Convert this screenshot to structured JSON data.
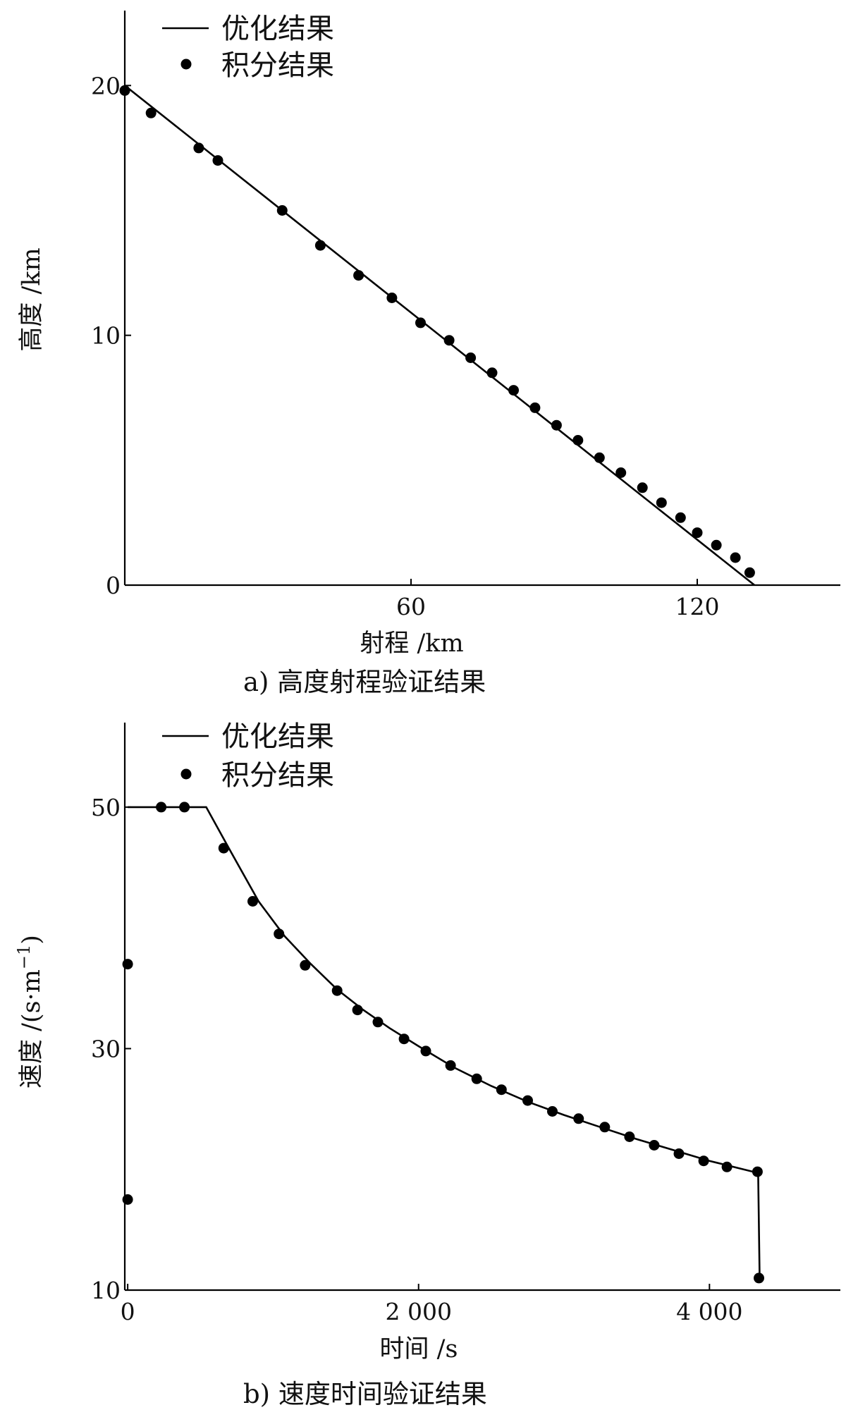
{
  "chart_data": [
    {
      "type": "line",
      "title": "",
      "caption": "a)  高度射程验证结果",
      "xlabel": "射程 /km",
      "ylabel": "高度 /km",
      "xlim": [
        0,
        150
      ],
      "ylim": [
        0,
        23
      ],
      "xticks": [
        60,
        120
      ],
      "xtick_labels": [
        "60",
        "120"
      ],
      "yticks": [
        0,
        10,
        20
      ],
      "ytick_labels": [
        "0",
        "10",
        "20"
      ],
      "grid": false,
      "legend_position": "top-left",
      "series": [
        {
          "name": "优化结果",
          "style": "line",
          "x": [
            0,
            132
          ],
          "y": [
            20,
            0
          ]
        },
        {
          "name": "积分结果",
          "style": "markers",
          "x": [
            0,
            5.5,
            15.5,
            19.5,
            33,
            41,
            49,
            56,
            62,
            68,
            72.5,
            77,
            81.5,
            86,
            90.5,
            95,
            99.5,
            104,
            108.5,
            112.5,
            116.5,
            120,
            124,
            128,
            131
          ],
          "y": [
            19.8,
            18.9,
            17.5,
            17.0,
            15.0,
            13.6,
            12.4,
            11.5,
            10.5,
            9.8,
            9.1,
            8.5,
            7.8,
            7.1,
            6.4,
            5.8,
            5.1,
            4.5,
            3.9,
            3.3,
            2.7,
            2.1,
            1.6,
            1.1,
            0.5
          ]
        }
      ]
    },
    {
      "type": "line",
      "title": "",
      "caption": "b)  速度时间验证结果",
      "xlabel": "时间 /s",
      "ylabel": "速度 /(s·m",
      "ylabel_superscript": "−1",
      "ylabel_suffix": ")",
      "xlim": [
        -20,
        4900
      ],
      "ylim": [
        10,
        57
      ],
      "xticks": [
        0,
        2000,
        4000
      ],
      "xtick_labels": [
        "0",
        "2 000",
        "4 000"
      ],
      "yticks": [
        10,
        30,
        50
      ],
      "ytick_labels": [
        "10",
        "30",
        "50"
      ],
      "grid": false,
      "legend_position": "top-left",
      "series": [
        {
          "name": "优化结果",
          "style": "line",
          "x": [
            0,
            200,
            400,
            540,
            700,
            900,
            1080,
            1260,
            1440,
            1620,
            1800,
            2000,
            2250,
            2500,
            2750,
            3000,
            3250,
            3500,
            3750,
            4000,
            4200,
            4335,
            4345
          ],
          "y": [
            50,
            50,
            50,
            50,
            46.5,
            42.2,
            39.3,
            37.0,
            34.9,
            33.2,
            31.7,
            30.2,
            28.4,
            26.9,
            25.6,
            24.5,
            23.5,
            22.5,
            21.6,
            20.7,
            20.1,
            19.7,
            11.0
          ]
        },
        {
          "name": "积分结果",
          "style": "markers",
          "x": [
            0,
            0,
            230,
            390,
            660,
            860,
            1040,
            1220,
            1440,
            1580,
            1720,
            1900,
            2050,
            2220,
            2400,
            2570,
            2750,
            2920,
            3100,
            3280,
            3450,
            3620,
            3790,
            3960,
            4120,
            4330,
            4340
          ],
          "y": [
            37.0,
            17.5,
            50.0,
            50.0,
            46.6,
            42.2,
            39.5,
            36.9,
            34.8,
            33.2,
            32.2,
            30.8,
            29.8,
            28.6,
            27.5,
            26.6,
            25.7,
            24.8,
            24.2,
            23.5,
            22.7,
            22.0,
            21.3,
            20.7,
            20.2,
            19.8,
            11.0
          ]
        }
      ]
    }
  ]
}
